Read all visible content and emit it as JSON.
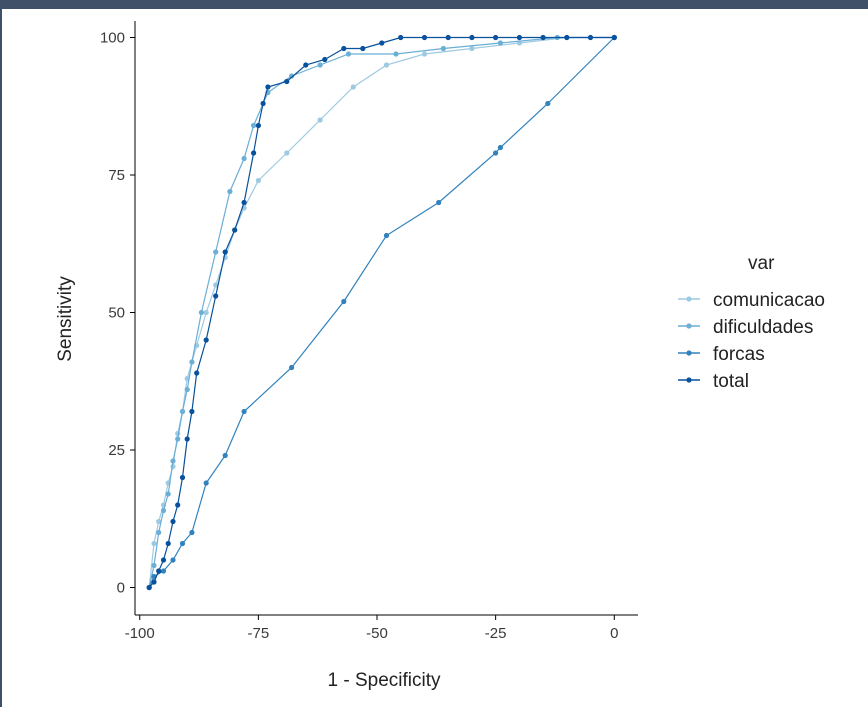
{
  "chart_data": {
    "type": "line",
    "title": "",
    "xlabel": "1 - Specificity",
    "ylabel": "Sensitivity",
    "xlim": [
      -101,
      5
    ],
    "ylim": [
      -5,
      103
    ],
    "x_ticks": [
      -100,
      -75,
      -50,
      -25,
      0
    ],
    "x_tick_labels": [
      "-100",
      "-75",
      "-50",
      "-25",
      "0"
    ],
    "y_ticks": [
      0,
      25,
      50,
      75,
      100
    ],
    "y_tick_labels": [
      "0",
      "25",
      "50",
      "75",
      "100"
    ],
    "grid": false,
    "legend": {
      "title": "var",
      "position": "right"
    },
    "series": [
      {
        "name": "comunicacao",
        "color": "#9ecae1",
        "points": [
          [
            -98,
            0
          ],
          [
            -97,
            8
          ],
          [
            -96,
            12
          ],
          [
            -95,
            15
          ],
          [
            -94,
            19
          ],
          [
            -93,
            22
          ],
          [
            -92,
            28
          ],
          [
            -91,
            32
          ],
          [
            -90,
            38
          ],
          [
            -88,
            44
          ],
          [
            -86,
            50
          ],
          [
            -84,
            55
          ],
          [
            -82,
            60
          ],
          [
            -80,
            65
          ],
          [
            -78,
            69
          ],
          [
            -75,
            74
          ],
          [
            -69,
            79
          ],
          [
            -62,
            85
          ],
          [
            -55,
            91
          ],
          [
            -48,
            95
          ],
          [
            -40,
            97
          ],
          [
            -30,
            98
          ],
          [
            -20,
            99
          ],
          [
            -10,
            100
          ],
          [
            0,
            100
          ]
        ]
      },
      {
        "name": "dificuldades",
        "color": "#6baed6",
        "points": [
          [
            -98,
            0
          ],
          [
            -97,
            4
          ],
          [
            -96,
            10
          ],
          [
            -95,
            14
          ],
          [
            -94,
            17
          ],
          [
            -93,
            23
          ],
          [
            -92,
            27
          ],
          [
            -91,
            32
          ],
          [
            -90,
            36
          ],
          [
            -89,
            41
          ],
          [
            -87,
            50
          ],
          [
            -84,
            61
          ],
          [
            -81,
            72
          ],
          [
            -78,
            78
          ],
          [
            -76,
            84
          ],
          [
            -73,
            90
          ],
          [
            -68,
            93
          ],
          [
            -62,
            95
          ],
          [
            -56,
            97
          ],
          [
            -46,
            97
          ],
          [
            -36,
            98
          ],
          [
            -24,
            99
          ],
          [
            -12,
            100
          ],
          [
            0,
            100
          ]
        ]
      },
      {
        "name": "forcas",
        "color": "#3182bd",
        "points": [
          [
            -98,
            0
          ],
          [
            -97,
            2
          ],
          [
            -95,
            3
          ],
          [
            -93,
            5
          ],
          [
            -91,
            8
          ],
          [
            -89,
            10
          ],
          [
            -86,
            19
          ],
          [
            -82,
            24
          ],
          [
            -78,
            32
          ],
          [
            -68,
            40
          ],
          [
            -57,
            52
          ],
          [
            -48,
            64
          ],
          [
            -37,
            70
          ],
          [
            -25,
            79
          ],
          [
            -24,
            80
          ],
          [
            -14,
            88
          ],
          [
            0,
            100
          ]
        ]
      },
      {
        "name": "total",
        "color": "#08519c",
        "points": [
          [
            -98,
            0
          ],
          [
            -97,
            1
          ],
          [
            -96,
            3
          ],
          [
            -95,
            5
          ],
          [
            -94,
            8
          ],
          [
            -93,
            12
          ],
          [
            -92,
            15
          ],
          [
            -91,
            20
          ],
          [
            -90,
            27
          ],
          [
            -89,
            32
          ],
          [
            -88,
            39
          ],
          [
            -86,
            45
          ],
          [
            -84,
            53
          ],
          [
            -82,
            61
          ],
          [
            -80,
            65
          ],
          [
            -78,
            70
          ],
          [
            -76,
            79
          ],
          [
            -75,
            84
          ],
          [
            -74,
            88
          ],
          [
            -73,
            91
          ],
          [
            -69,
            92
          ],
          [
            -65,
            95
          ],
          [
            -61,
            96
          ],
          [
            -57,
            98
          ],
          [
            -53,
            98
          ],
          [
            -49,
            99
          ],
          [
            -45,
            100
          ],
          [
            -40,
            100
          ],
          [
            -35,
            100
          ],
          [
            -30,
            100
          ],
          [
            -25,
            100
          ],
          [
            -20,
            100
          ],
          [
            -15,
            100
          ],
          [
            -10,
            100
          ],
          [
            -5,
            100
          ],
          [
            0,
            100
          ]
        ]
      }
    ]
  }
}
